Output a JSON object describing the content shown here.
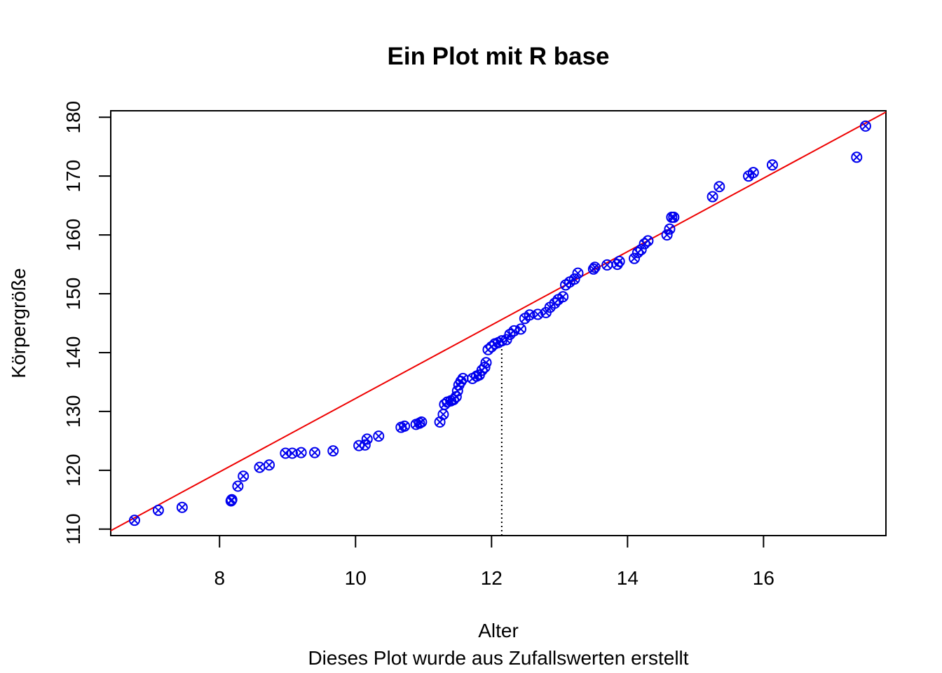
{
  "chart_data": {
    "type": "scatter",
    "title": "Ein Plot mit R base",
    "xlabel": "Alter",
    "ylabel": "Körpergröße",
    "subtitle": "Dieses Plot wurde aus Zufallswerten erstellt",
    "xlim": [
      6.4,
      17.8
    ],
    "ylim": [
      108.9,
      181.1
    ],
    "x_ticks": [
      8,
      10,
      12,
      14,
      16
    ],
    "x_tick_labels": [
      "8",
      "10",
      "12",
      "14",
      "16"
    ],
    "y_ticks": [
      110,
      120,
      130,
      140,
      150,
      160,
      170,
      180
    ],
    "y_tick_labels": [
      "110",
      "120",
      "130",
      "140",
      "150",
      "160",
      "170",
      "180"
    ],
    "grid": false,
    "legend": "none",
    "points": {
      "x": [
        6.75,
        7.1,
        7.45,
        8.17,
        8.18,
        8.27,
        8.35,
        8.59,
        8.73,
        8.97,
        9.07,
        9.2,
        9.4,
        9.67,
        10.05,
        10.14,
        10.17,
        10.34,
        10.67,
        10.72,
        10.89,
        10.94,
        10.97,
        11.24,
        11.29,
        11.31,
        11.35,
        11.4,
        11.44,
        11.48,
        11.5,
        11.52,
        11.55,
        11.58,
        11.72,
        11.78,
        11.82,
        11.86,
        11.9,
        11.92,
        11.95,
        12.0,
        12.05,
        12.1,
        12.15,
        12.22,
        12.27,
        12.33,
        12.43,
        12.49,
        12.56,
        12.68,
        12.8,
        12.86,
        12.93,
        12.98,
        13.05,
        13.09,
        13.15,
        13.22,
        13.27,
        13.5,
        13.52,
        13.7,
        13.85,
        13.88,
        14.1,
        14.15,
        14.2,
        14.25,
        14.3,
        14.58,
        14.62,
        14.65,
        14.68,
        15.25,
        15.35,
        15.78,
        15.85,
        16.13,
        17.37,
        17.5
      ],
      "y": [
        111.5,
        113.2,
        113.7,
        114.8,
        115.0,
        117.3,
        119.0,
        120.5,
        120.9,
        122.9,
        122.9,
        123.0,
        123.0,
        123.3,
        124.2,
        124.3,
        125.3,
        125.8,
        127.3,
        127.5,
        127.8,
        128.0,
        128.2,
        128.2,
        129.5,
        131.2,
        131.6,
        131.8,
        132.0,
        132.5,
        133.5,
        134.5,
        135.1,
        135.6,
        135.6,
        136.0,
        136.2,
        137.0,
        137.5,
        138.3,
        140.5,
        141.0,
        141.5,
        141.7,
        142.0,
        142.2,
        143.1,
        143.7,
        144.0,
        145.8,
        146.4,
        146.5,
        146.8,
        147.7,
        148.4,
        149.0,
        149.5,
        151.5,
        152.0,
        152.5,
        153.5,
        154.2,
        154.5,
        154.9,
        155.0,
        155.5,
        156.0,
        157.0,
        157.5,
        158.5,
        159.0,
        160.0,
        161.0,
        163.0,
        163.0,
        166.5,
        168.2,
        170.0,
        170.6,
        171.9,
        173.2,
        178.5
      ]
    },
    "regression_line": {
      "intercept": 69.8,
      "slope": 6.24
    },
    "reference_line": {
      "x": 12.15,
      "y_from": 108.9,
      "y_to": 142.0
    },
    "colors": {
      "points": "#0000ee",
      "regression": "#ee0000",
      "reference": "#000000",
      "axes": "#000000"
    }
  }
}
